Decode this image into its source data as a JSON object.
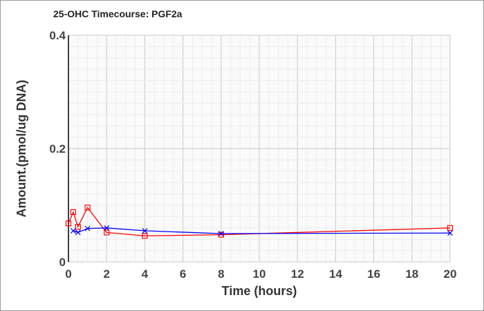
{
  "chart_data": {
    "type": "line",
    "title": "25-OHC Timecourse: PGF2a",
    "xlabel": "Time (hours)",
    "ylabel": "Amount.(pmol/ug DNA)",
    "xlim": [
      0,
      20
    ],
    "ylim": [
      0,
      0.4
    ],
    "xticks": [
      "0",
      "2",
      "4",
      "6",
      "8",
      "10",
      "12",
      "14",
      "16",
      "18",
      "20"
    ],
    "yticks": [
      "0",
      "0.2",
      "0.4"
    ],
    "grid": true,
    "series": [
      {
        "name": "red",
        "color": "#ff0000",
        "marker": "square",
        "x": [
          0,
          0.25,
          0.5,
          1,
          2,
          4,
          8,
          20
        ],
        "y": [
          0.068,
          0.088,
          0.062,
          0.096,
          0.052,
          0.046,
          0.048,
          0.06
        ]
      },
      {
        "name": "blue",
        "color": "#0000ff",
        "marker": "x",
        "x": [
          0.25,
          0.5,
          1,
          2,
          4,
          8,
          20
        ],
        "y": [
          0.055,
          0.052,
          0.059,
          0.06,
          0.055,
          0.05,
          0.051
        ]
      }
    ]
  }
}
